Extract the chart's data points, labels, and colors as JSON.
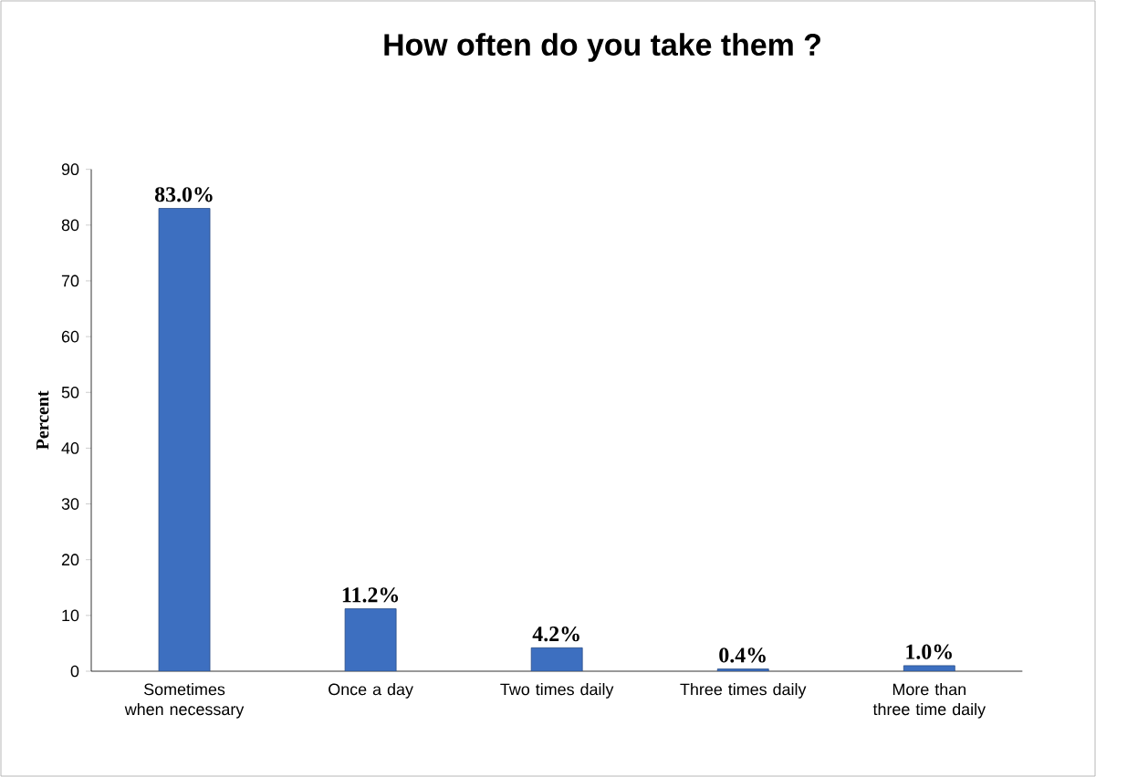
{
  "chart_data": {
    "type": "bar",
    "title": "How often do you take them ?",
    "ylabel": "Percent",
    "categories": [
      "Sometimes when necessary",
      "Once a day",
      "Two times daily",
      "Three times daily",
      "More than three time daily"
    ],
    "values": [
      83.0,
      11.2,
      4.2,
      0.4,
      1.0
    ],
    "value_labels": [
      "83.0%",
      "11.2%",
      "4.2%",
      "0.4%",
      "1.0%"
    ],
    "color": "#3d6fc0",
    "ylim": [
      0,
      90
    ],
    "yticks": [
      0,
      10,
      20,
      30,
      40,
      50,
      60,
      70,
      80,
      90
    ]
  }
}
